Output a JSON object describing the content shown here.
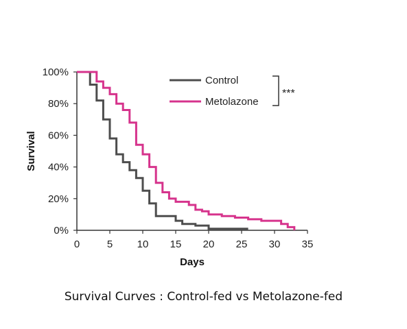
{
  "caption": "Survival Curves : Control-fed vs Metolazone-fed",
  "significance": "***",
  "colors": {
    "axis": "#333333",
    "control": "#4d4d4d",
    "metolazone": "#d6338c"
  },
  "chart_data": {
    "type": "line",
    "step": true,
    "title": "",
    "xlabel": "Days",
    "ylabel": "Survival",
    "xlim": [
      0,
      35
    ],
    "ylim": [
      0,
      100
    ],
    "xticks": [
      "0",
      "5",
      "10",
      "15",
      "20",
      "25",
      "30",
      "35"
    ],
    "yticks": [
      "0%",
      "20%",
      "40%",
      "60%",
      "80%",
      "100%"
    ],
    "grid": false,
    "legend": "top-right",
    "series": [
      {
        "name": "Control",
        "color": "#4d4d4d",
        "x": [
          0,
          2,
          3,
          4,
          5,
          6,
          7,
          8,
          9,
          10,
          11,
          12,
          15,
          16,
          18,
          20,
          26
        ],
        "y": [
          100,
          92,
          82,
          70,
          58,
          48,
          43,
          38,
          33,
          25,
          17,
          9,
          6,
          4,
          3,
          1,
          1
        ]
      },
      {
        "name": "Metolazone",
        "color": "#d6338c",
        "x": [
          0,
          3,
          4,
          5,
          6,
          7,
          8,
          9,
          10,
          11,
          12,
          13,
          14,
          15,
          17,
          18,
          19,
          20,
          22,
          24,
          26,
          28,
          30,
          31,
          32,
          33
        ],
        "y": [
          100,
          94,
          90,
          86,
          80,
          76,
          68,
          54,
          48,
          40,
          30,
          24,
          20,
          18,
          16,
          13,
          12,
          10,
          9,
          8,
          7,
          6,
          6,
          4,
          2,
          0
        ]
      }
    ]
  }
}
